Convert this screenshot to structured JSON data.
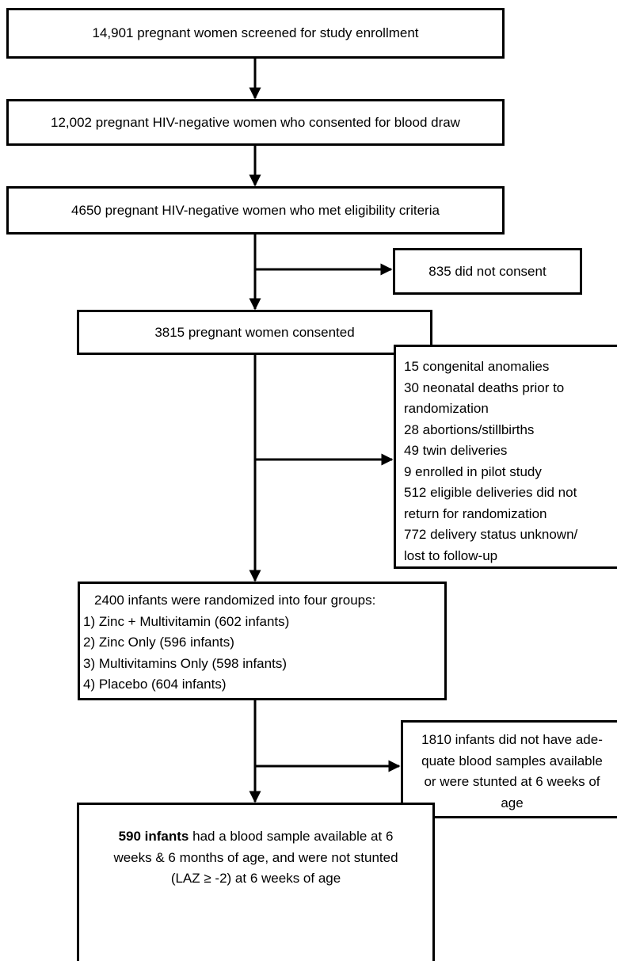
{
  "screened": "14,901 pregnant women screened for study enrollment",
  "consented_blood": "12,002 pregnant HIV-negative women who consented for blood draw",
  "eligible": "4650 pregnant HIV-negative women who met eligibility criteria",
  "not_consent": "835 did not consent",
  "consented": "3815 pregnant women consented",
  "excluded_1": [
    "15 congenital anomalies",
    "30 neonatal deaths prior to",
    "randomization",
    "28 abortions/stillbirths",
    "49 twin deliveries",
    "9 enrolled in pilot study",
    "512 eligible deliveries did not",
    "return for randomization",
    "772 delivery status unknown/",
    "lost to follow-up"
  ],
  "randomized": [
    "2400 infants were randomized into four groups:",
    "1) Zinc + Multivitamin (602 infants)",
    "2) Zinc Only (596 infants)",
    "3) Multivitamins Only (598 infants)",
    "4) Placebo (604 infants)"
  ],
  "excluded_2": [
    "1810 infants did not have ade-",
    "quate blood samples available",
    "or were stunted at 6 weeks of",
    "age"
  ],
  "final": {
    "bold": "590 infants",
    "line1_rest": " had a blood sample available at 6",
    "line2": "weeks & 6 months of age, and were not stunted",
    "line3": "(LAZ ≥ -2) at 6 weeks of age"
  }
}
